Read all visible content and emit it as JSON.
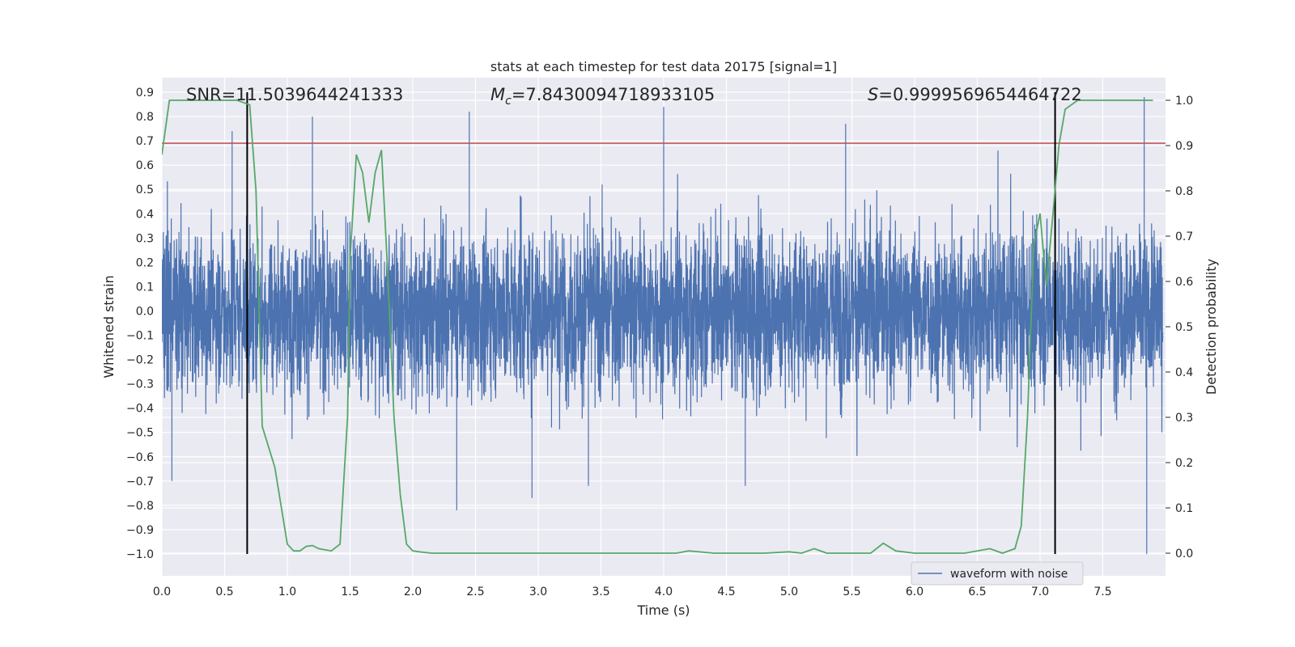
{
  "chart_data": {
    "type": "line",
    "title": "stats at each timestep for test data 20175 [signal=1]",
    "xlabel": "Time (s)",
    "ylabel_left": "Whitened strain",
    "ylabel_right": "Detection probability",
    "xlim": [
      0.0,
      8.0
    ],
    "ylim_left": [
      -1.09,
      0.96
    ],
    "ylim_right": [
      -0.05,
      1.05
    ],
    "x_ticks": [
      0.0,
      0.5,
      1.0,
      1.5,
      2.0,
      2.5,
      3.0,
      3.5,
      4.0,
      4.5,
      5.0,
      5.5,
      6.0,
      6.5,
      7.0,
      7.5
    ],
    "x_tick_labels": [
      "0.0",
      "0.5",
      "1.0",
      "1.5",
      "2.0",
      "2.5",
      "3.0",
      "3.5",
      "4.0",
      "4.5",
      "5.0",
      "5.5",
      "6.0",
      "6.5",
      "7.0",
      "7.5"
    ],
    "y_left_ticks": [
      0.9,
      0.8,
      0.7,
      0.6,
      0.5,
      0.4,
      0.3,
      0.2,
      0.1,
      0.0,
      -0.1,
      -0.2,
      -0.3,
      -0.4,
      -0.5,
      -0.6,
      -0.7,
      -0.8,
      -0.9,
      -1.0
    ],
    "y_left_tick_labels": [
      "0.9",
      "0.8",
      "0.7",
      "0.6",
      "0.5",
      "0.4",
      "0.3",
      "0.2",
      "0.1",
      "0.0",
      "−0.1",
      "−0.2",
      "−0.3",
      "−0.4",
      "−0.5",
      "−0.6",
      "−0.7",
      "−0.8",
      "−0.9",
      "−1.0"
    ],
    "y_right_ticks": [
      1.0,
      0.9,
      0.8,
      0.7,
      0.6,
      0.5,
      0.4,
      0.3,
      0.2,
      0.1,
      0.0
    ],
    "y_right_tick_labels": [
      "1.0",
      "0.9",
      "0.8",
      "0.7",
      "0.6",
      "0.5",
      "0.4",
      "0.3",
      "0.2",
      "0.1",
      "0.0"
    ],
    "grid": true,
    "legend_position": "lower-right",
    "annotations": {
      "snr_text": "SNR=11.5039644241333",
      "mc_symbol": "M",
      "mc_subscript": "c",
      "mc_value": "=7.8430094718933105",
      "s_symbol": "S",
      "s_value": "=0.9999569654464722"
    },
    "series": [
      {
        "name": "waveform with noise",
        "axis": "left",
        "color": "#4c72b0",
        "samples_per_second": 2048,
        "typical_amplitude": 0.3,
        "min": -1.0,
        "max": 0.88,
        "peaks": [
          {
            "x": 0.56,
            "y": 0.74
          },
          {
            "x": 1.2,
            "y": 0.8
          },
          {
            "x": 2.45,
            "y": 0.82
          },
          {
            "x": 4.0,
            "y": 0.84
          },
          {
            "x": 5.45,
            "y": 0.77
          },
          {
            "x": 7.83,
            "y": 0.88
          },
          {
            "x": 2.35,
            "y": -0.82
          },
          {
            "x": 2.95,
            "y": -0.77
          },
          {
            "x": 4.65,
            "y": -0.72
          },
          {
            "x": 7.85,
            "y": -1.0
          },
          {
            "x": 0.08,
            "y": -0.7
          },
          {
            "x": 3.4,
            "y": -0.72
          }
        ]
      },
      {
        "name": "",
        "axis": "right",
        "color": "#55a868",
        "x": [
          0.0,
          0.06,
          0.12,
          0.2,
          0.3,
          0.4,
          0.5,
          0.6,
          0.65,
          0.7,
          0.75,
          0.8,
          0.9,
          1.0,
          1.05,
          1.1,
          1.15,
          1.2,
          1.25,
          1.35,
          1.42,
          1.48,
          1.5,
          1.55,
          1.6,
          1.65,
          1.7,
          1.75,
          1.8,
          1.85,
          1.9,
          1.95,
          2.0,
          2.05,
          2.15,
          2.3,
          2.5,
          2.7,
          2.9,
          3.1,
          3.3,
          3.5,
          3.7,
          3.9,
          4.1,
          4.2,
          4.4,
          4.6,
          4.8,
          5.0,
          5.1,
          5.2,
          5.3,
          5.5,
          5.65,
          5.75,
          5.85,
          6.0,
          6.2,
          6.4,
          6.6,
          6.7,
          6.8,
          6.85,
          6.9,
          6.95,
          7.0,
          7.05,
          7.1,
          7.15,
          7.2,
          7.3,
          7.5,
          7.7,
          7.9
        ],
        "y": [
          0.88,
          1.0,
          1.0,
          1.0,
          1.0,
          1.0,
          1.0,
          1.0,
          0.995,
          0.99,
          0.8,
          0.28,
          0.19,
          0.02,
          0.005,
          0.005,
          0.015,
          0.017,
          0.01,
          0.005,
          0.02,
          0.3,
          0.65,
          0.88,
          0.84,
          0.73,
          0.84,
          0.89,
          0.62,
          0.3,
          0.13,
          0.02,
          0.005,
          0.003,
          0.0,
          0.0,
          0.0,
          0.0,
          0.0,
          0.0,
          0.0,
          0.0,
          0.0,
          0.0,
          0.0,
          0.005,
          0.0,
          0.0,
          0.0,
          0.003,
          0.0,
          0.01,
          0.0,
          0.0,
          0.0,
          0.022,
          0.005,
          0.0,
          0.0,
          0.0,
          0.01,
          0.0,
          0.01,
          0.06,
          0.3,
          0.68,
          0.75,
          0.59,
          0.74,
          0.9,
          0.98,
          1.0,
          1.0,
          1.0,
          1.0
        ]
      }
    ],
    "hlines": [
      {
        "axis": "left",
        "y": 0.69,
        "color": "#c44e52"
      }
    ],
    "vlines": [
      {
        "x": 0.68,
        "color": "#000000"
      },
      {
        "x": 7.12,
        "color": "#000000"
      }
    ]
  }
}
